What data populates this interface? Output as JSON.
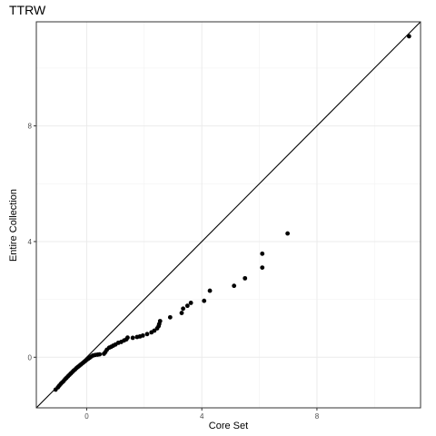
{
  "chart_data": {
    "type": "scatter",
    "title": "TTRW",
    "xlabel": "Core Set",
    "ylabel": "Entire Collection",
    "xlim": [
      -1.75,
      11.6
    ],
    "ylim": [
      -1.75,
      11.6
    ],
    "x_ticks": [
      0,
      4,
      8
    ],
    "y_ticks": [
      0,
      4,
      8
    ],
    "x_tick_labels": [
      "0",
      "4",
      "8"
    ],
    "y_tick_labels": [
      "0",
      "4",
      "8"
    ],
    "grid": true,
    "reference_line": "y = x",
    "point_color": "#000000",
    "points": [
      {
        "x": -1.08,
        "y": -1.12
      },
      {
        "x": -1.0,
        "y": -1.04
      },
      {
        "x": -0.95,
        "y": -0.98
      },
      {
        "x": -0.9,
        "y": -0.92
      },
      {
        "x": -0.85,
        "y": -0.87
      },
      {
        "x": -0.8,
        "y": -0.82
      },
      {
        "x": -0.75,
        "y": -0.76
      },
      {
        "x": -0.7,
        "y": -0.71
      },
      {
        "x": -0.65,
        "y": -0.66
      },
      {
        "x": -0.6,
        "y": -0.61
      },
      {
        "x": -0.55,
        "y": -0.56
      },
      {
        "x": -0.5,
        "y": -0.51
      },
      {
        "x": -0.45,
        "y": -0.46
      },
      {
        "x": -0.4,
        "y": -0.42
      },
      {
        "x": -0.35,
        "y": -0.37
      },
      {
        "x": -0.3,
        "y": -0.33
      },
      {
        "x": -0.25,
        "y": -0.29
      },
      {
        "x": -0.2,
        "y": -0.25
      },
      {
        "x": -0.15,
        "y": -0.21
      },
      {
        "x": -0.1,
        "y": -0.17
      },
      {
        "x": -0.05,
        "y": -0.13
      },
      {
        "x": 0.0,
        "y": -0.09
      },
      {
        "x": 0.05,
        "y": -0.05
      },
      {
        "x": 0.1,
        "y": -0.02
      },
      {
        "x": 0.15,
        "y": 0.02
      },
      {
        "x": 0.22,
        "y": 0.06
      },
      {
        "x": 0.3,
        "y": 0.08
      },
      {
        "x": 0.38,
        "y": 0.09
      },
      {
        "x": 0.45,
        "y": 0.1
      },
      {
        "x": 0.6,
        "y": 0.12
      },
      {
        "x": 0.65,
        "y": 0.18
      },
      {
        "x": 0.7,
        "y": 0.26
      },
      {
        "x": 0.78,
        "y": 0.33
      },
      {
        "x": 0.85,
        "y": 0.36
      },
      {
        "x": 0.92,
        "y": 0.4
      },
      {
        "x": 1.0,
        "y": 0.44
      },
      {
        "x": 1.1,
        "y": 0.5
      },
      {
        "x": 1.2,
        "y": 0.53
      },
      {
        "x": 1.3,
        "y": 0.58
      },
      {
        "x": 1.38,
        "y": 0.62
      },
      {
        "x": 1.42,
        "y": 0.68
      },
      {
        "x": 1.6,
        "y": 0.67
      },
      {
        "x": 1.75,
        "y": 0.7
      },
      {
        "x": 1.85,
        "y": 0.72
      },
      {
        "x": 1.95,
        "y": 0.75
      },
      {
        "x": 2.1,
        "y": 0.8
      },
      {
        "x": 2.25,
        "y": 0.86
      },
      {
        "x": 2.35,
        "y": 0.92
      },
      {
        "x": 2.45,
        "y": 1.0
      },
      {
        "x": 2.5,
        "y": 1.08
      },
      {
        "x": 2.52,
        "y": 1.15
      },
      {
        "x": 2.55,
        "y": 1.25
      },
      {
        "x": 2.9,
        "y": 1.38
      },
      {
        "x": 3.3,
        "y": 1.53
      },
      {
        "x": 3.35,
        "y": 1.68
      },
      {
        "x": 3.5,
        "y": 1.78
      },
      {
        "x": 3.62,
        "y": 1.88
      },
      {
        "x": 4.08,
        "y": 1.95
      },
      {
        "x": 4.28,
        "y": 2.3
      },
      {
        "x": 5.12,
        "y": 2.47
      },
      {
        "x": 5.5,
        "y": 2.73
      },
      {
        "x": 6.1,
        "y": 3.1
      },
      {
        "x": 6.1,
        "y": 3.58
      },
      {
        "x": 6.98,
        "y": 4.28
      },
      {
        "x": 11.2,
        "y": 11.1
      }
    ]
  }
}
